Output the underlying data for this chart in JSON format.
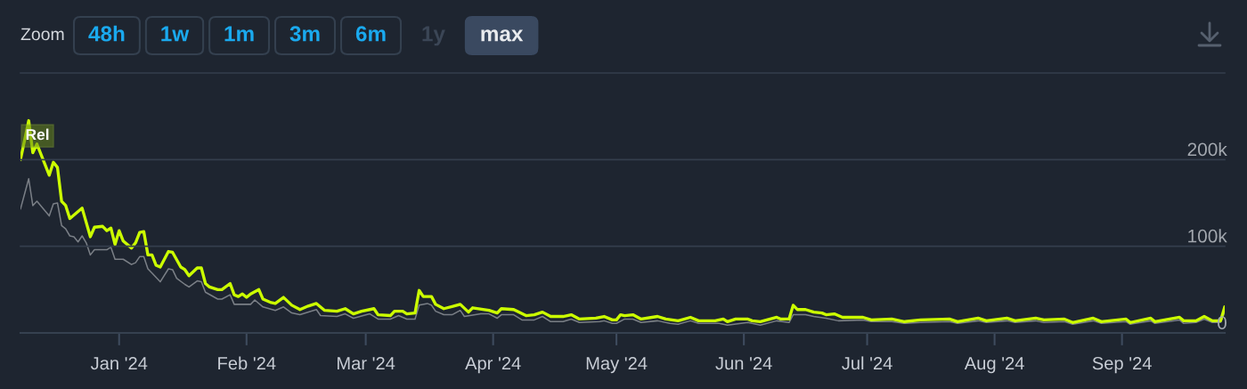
{
  "chart_data": {
    "type": "line",
    "xlim": [
      "2023-12-08",
      "2024-09-26"
    ],
    "xticks": [
      {
        "value": "2024-01-01",
        "label": "Jan '24"
      },
      {
        "value": "2024-02-01",
        "label": "Feb '24"
      },
      {
        "value": "2024-03-01",
        "label": "Mar '24"
      },
      {
        "value": "2024-04-01",
        "label": "Apr '24"
      },
      {
        "value": "2024-05-01",
        "label": "May '24"
      },
      {
        "value": "2024-06-01",
        "label": "Jun '24"
      },
      {
        "value": "2024-07-01",
        "label": "Jul '24"
      },
      {
        "value": "2024-08-01",
        "label": "Aug '24"
      },
      {
        "value": "2024-09-01",
        "label": "Sep '24"
      }
    ],
    "ylim": [
      0,
      300000
    ],
    "yticks": [
      0,
      {
        "value": 100000,
        "label": "100k"
      },
      {
        "value": 200000,
        "label": "200k"
      },
      {
        "value": 300000,
        "label": null
      }
    ],
    "grid": "y",
    "annotations": [
      "Zoom",
      "48h",
      "1w",
      "1m",
      "3m",
      "6m",
      "1y",
      "max",
      {
        "text": "Rel",
        "x": "2023-12-08",
        "y": 212000
      }
    ],
    "series": [
      {
        "color": "#7a7f86",
        "x": [
          "2023-12-08",
          "2023-12-10",
          "2023-12-11",
          "2023-12-12",
          "2023-12-15",
          "2023-12-16",
          "2023-12-17",
          "2023-12-18",
          "2023-12-19",
          "2023-12-20",
          "2023-12-21",
          "2023-12-22",
          "2023-12-23",
          "2023-12-24",
          "2023-12-25",
          "2023-12-26",
          "2023-12-29",
          "2023-12-30",
          "2023-12-31",
          "2024-01-02",
          "2024-01-04",
          "2024-01-05",
          "2024-01-06",
          "2024-01-07",
          "2024-01-08",
          "2024-01-09",
          "2024-01-11",
          "2024-01-13",
          "2024-01-14",
          "2024-01-15",
          "2024-01-17",
          "2024-01-18",
          "2024-01-20",
          "2024-01-21",
          "2024-01-22",
          "2024-01-25",
          "2024-01-26",
          "2024-01-28",
          "2024-01-29",
          "2024-02-02",
          "2024-02-03",
          "2024-02-05",
          "2024-02-08",
          "2024-02-10",
          "2024-02-12",
          "2024-02-14",
          "2024-02-18",
          "2024-02-19",
          "2024-02-23",
          "2024-02-25",
          "2024-02-27",
          "2024-03-02",
          "2024-03-04",
          "2024-03-07",
          "2024-03-09",
          "2024-03-11",
          "2024-03-13",
          "2024-03-14",
          "2024-03-16",
          "2024-03-17",
          "2024-03-18",
          "2024-03-20",
          "2024-03-22",
          "2024-03-24",
          "2024-03-25",
          "2024-03-29",
          "2024-03-31",
          "2024-04-02",
          "2024-04-03",
          "2024-04-06",
          "2024-04-08",
          "2024-04-11",
          "2024-04-13",
          "2024-04-15",
          "2024-04-18",
          "2024-04-20",
          "2024-04-22",
          "2024-04-27",
          "2024-04-28",
          "2024-04-30",
          "2024-05-01",
          "2024-05-03",
          "2024-05-05",
          "2024-05-07",
          "2024-05-11",
          "2024-05-14",
          "2024-05-16",
          "2024-05-19",
          "2024-05-21",
          "2024-05-26",
          "2024-05-28",
          "2024-06-02",
          "2024-06-05",
          "2024-06-09",
          "2024-06-12",
          "2024-06-13",
          "2024-06-16",
          "2024-06-18",
          "2024-06-21",
          "2024-06-24",
          "2024-06-30",
          "2024-07-02",
          "2024-07-07",
          "2024-07-10",
          "2024-07-14",
          "2024-07-21",
          "2024-07-23",
          "2024-07-28",
          "2024-07-30",
          "2024-08-04",
          "2024-08-06",
          "2024-08-11",
          "2024-08-13",
          "2024-08-18",
          "2024-08-20",
          "2024-08-25",
          "2024-08-27",
          "2024-09-02",
          "2024-09-03",
          "2024-09-08",
          "2024-09-09",
          "2024-09-15",
          "2024-09-16",
          "2024-09-19",
          "2024-09-21",
          "2024-09-23",
          "2024-09-25",
          "2024-09-26"
        ],
        "values": [
          143000,
          178000,
          147000,
          152000,
          135000,
          149000,
          150000,
          124000,
          120000,
          112000,
          111000,
          105000,
          112000,
          104000,
          90000,
          96000,
          96000,
          99000,
          85000,
          85000,
          79000,
          81000,
          88000,
          88000,
          74000,
          69000,
          59000,
          74000,
          73000,
          63000,
          56000,
          53000,
          60000,
          59000,
          47000,
          39000,
          39000,
          44000,
          33000,
          33000,
          38000,
          30000,
          26000,
          30000,
          23000,
          21000,
          27000,
          20000,
          19000,
          22000,
          17000,
          22000,
          16000,
          16000,
          20000,
          16000,
          16000,
          32000,
          34000,
          32000,
          25000,
          21000,
          21000,
          26000,
          19000,
          22000,
          22000,
          17000,
          21000,
          21000,
          15000,
          15000,
          19000,
          13000,
          13000,
          16000,
          12000,
          13000,
          14000,
          11000,
          11000,
          16000,
          16000,
          12000,
          14000,
          11000,
          10000,
          14000,
          11000,
          11000,
          9000,
          12000,
          9000,
          14000,
          12000,
          21000,
          21000,
          19000,
          17000,
          14000,
          15000,
          13000,
          13000,
          11000,
          12000,
          13000,
          11000,
          14000,
          12000,
          14000,
          12000,
          14000,
          12000,
          13000,
          10000,
          14000,
          11000,
          13000,
          10000,
          14000,
          11000,
          15000,
          11000,
          12000,
          16000,
          12000,
          12000,
          24000
        ]
      },
      {
        "color": "#ccff00",
        "x": [
          "2023-12-08",
          "2023-12-10",
          "2023-12-11",
          "2023-12-12",
          "2023-12-15",
          "2023-12-16",
          "2023-12-17",
          "2023-12-18",
          "2023-12-19",
          "2023-12-20",
          "2023-12-23",
          "2023-12-25",
          "2023-12-26",
          "2023-12-28",
          "2023-12-29",
          "2023-12-30",
          "2023-12-31",
          "2024-01-01",
          "2024-01-02",
          "2024-01-04",
          "2024-01-05",
          "2024-01-06",
          "2024-01-07",
          "2024-01-08",
          "2024-01-09",
          "2024-01-10",
          "2024-01-11",
          "2024-01-13",
          "2024-01-14",
          "2024-01-16",
          "2024-01-17",
          "2024-01-18",
          "2024-01-20",
          "2024-01-21",
          "2024-01-22",
          "2024-01-23",
          "2024-01-25",
          "2024-01-26",
          "2024-01-28",
          "2024-01-29",
          "2024-01-30",
          "2024-01-31",
          "2024-02-01",
          "2024-02-02",
          "2024-02-04",
          "2024-02-05",
          "2024-02-07",
          "2024-02-08",
          "2024-02-10",
          "2024-02-12",
          "2024-02-14",
          "2024-02-16",
          "2024-02-18",
          "2024-02-20",
          "2024-02-23",
          "2024-02-25",
          "2024-02-27",
          "2024-02-29",
          "2024-03-03",
          "2024-03-04",
          "2024-03-07",
          "2024-03-08",
          "2024-03-10",
          "2024-03-11",
          "2024-03-13",
          "2024-03-14",
          "2024-03-15",
          "2024-03-17",
          "2024-03-18",
          "2024-03-20",
          "2024-03-24",
          "2024-03-26",
          "2024-03-27",
          "2024-03-31",
          "2024-04-02",
          "2024-04-03",
          "2024-04-06",
          "2024-04-09",
          "2024-04-11",
          "2024-04-13",
          "2024-04-15",
          "2024-04-18",
          "2024-04-20",
          "2024-04-22",
          "2024-04-26",
          "2024-04-28",
          "2024-04-30",
          "2024-05-01",
          "2024-05-02",
          "2024-05-03",
          "2024-05-05",
          "2024-05-07",
          "2024-05-11",
          "2024-05-13",
          "2024-05-16",
          "2024-05-19",
          "2024-05-21",
          "2024-05-25",
          "2024-05-27",
          "2024-05-28",
          "2024-05-30",
          "2024-06-02",
          "2024-06-03",
          "2024-06-05",
          "2024-06-09",
          "2024-06-10",
          "2024-06-12",
          "2024-06-13",
          "2024-06-14",
          "2024-06-16",
          "2024-06-18",
          "2024-06-20",
          "2024-06-21",
          "2024-06-23",
          "2024-06-25",
          "2024-06-30",
          "2024-07-02",
          "2024-07-07",
          "2024-07-10",
          "2024-07-14",
          "2024-07-21",
          "2024-07-23",
          "2024-07-28",
          "2024-07-30",
          "2024-08-04",
          "2024-08-06",
          "2024-08-11",
          "2024-08-13",
          "2024-08-18",
          "2024-08-20",
          "2024-08-25",
          "2024-08-27",
          "2024-09-02",
          "2024-09-03",
          "2024-09-08",
          "2024-09-09",
          "2024-09-15",
          "2024-09-16",
          "2024-09-19",
          "2024-09-21",
          "2024-09-23",
          "2024-09-25",
          "2024-09-26"
        ],
        "values": [
          200000,
          245000,
          208000,
          218000,
          182000,
          197000,
          191000,
          152000,
          147000,
          132000,
          144000,
          111000,
          122000,
          123000,
          118000,
          121000,
          102000,
          118000,
          106000,
          98000,
          104000,
          116000,
          117000,
          90000,
          90000,
          78000,
          76000,
          94000,
          93000,
          76000,
          73000,
          66000,
          75000,
          75000,
          57000,
          53000,
          50000,
          50000,
          57000,
          44000,
          42000,
          45000,
          41000,
          45000,
          50000,
          39000,
          35000,
          34000,
          41000,
          32000,
          27000,
          31000,
          34000,
          26000,
          25000,
          28000,
          22000,
          25000,
          28000,
          21000,
          20000,
          25000,
          25000,
          22000,
          23000,
          49000,
          42000,
          42000,
          33000,
          28000,
          33000,
          24000,
          29000,
          26000,
          23000,
          28000,
          27000,
          20000,
          21000,
          24000,
          19000,
          19000,
          21000,
          16000,
          17000,
          19000,
          15000,
          15000,
          21000,
          20000,
          21000,
          16000,
          19000,
          16000,
          14000,
          18000,
          14000,
          14000,
          16000,
          13000,
          16000,
          16000,
          14000,
          13000,
          18000,
          16000,
          16000,
          32000,
          27000,
          27000,
          24000,
          23000,
          21000,
          22000,
          18000,
          18000,
          15000,
          16000,
          13000,
          15000,
          16000,
          13000,
          17000,
          14000,
          17000,
          14000,
          17000,
          15000,
          16000,
          12000,
          17000,
          13000,
          16000,
          12000,
          17000,
          13000,
          18000,
          14000,
          14000,
          19000,
          14000,
          14000,
          30000
        ]
      }
    ]
  }
}
